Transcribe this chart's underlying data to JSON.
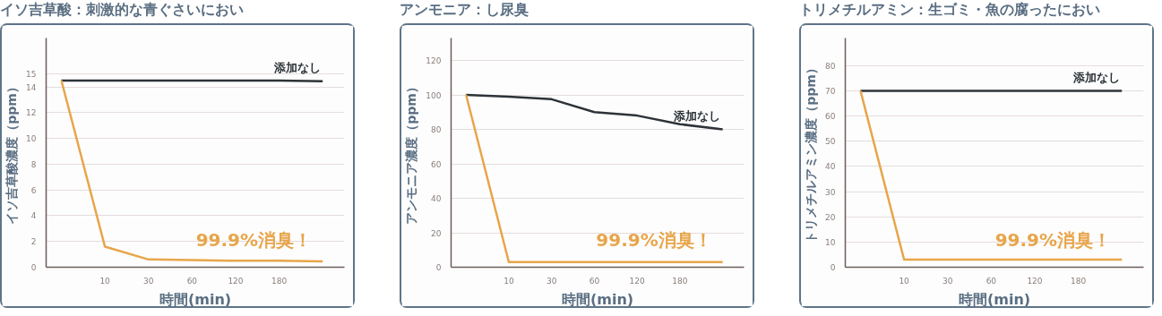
{
  "chart_data": [
    {
      "type": "line",
      "title": "イソ吉草酸：刺激的な青ぐさいにおい",
      "xlabel": "時間(min)",
      "ylabel": "イソ吉草酸濃度（ppm）",
      "categories": [
        null,
        "10",
        "30",
        "60",
        "120",
        "180",
        null
      ],
      "ylim": [
        0,
        17.8
      ],
      "yticks": [
        0,
        2,
        4,
        6,
        8,
        10,
        12,
        14,
        15
      ],
      "grid": "y",
      "line_style": "solid",
      "series": [
        {
          "name": "添加なし",
          "color": "#2d3338",
          "values": [
            14.5,
            14.5,
            14.5,
            14.5,
            14.5,
            14.5,
            14.45
          ]
        },
        {
          "color": "#e8a54a",
          "values": [
            14.5,
            1.6,
            0.6,
            0.55,
            0.5,
            0.5,
            0.45
          ]
        }
      ],
      "annotations": [
        "99.9%消臭！"
      ]
    },
    {
      "type": "line",
      "title": "アンモニア：し尿臭",
      "xlabel": "時間(min)",
      "ylabel": "アンモニア濃度（ppm）",
      "categories": [
        null,
        "10",
        "30",
        "60",
        "120",
        "180",
        null
      ],
      "ylim": [
        0,
        133
      ],
      "yticks": [
        0,
        20,
        40,
        60,
        80,
        100,
        120
      ],
      "grid": "y",
      "line_style": "solid",
      "series": [
        {
          "name": "添加なし",
          "color": "#2d3338",
          "values": [
            100,
            99,
            97.5,
            90,
            88,
            83,
            80
          ]
        },
        {
          "color": "#e8a54a",
          "values": [
            100,
            3,
            3,
            3,
            3,
            3,
            3
          ]
        }
      ],
      "annotations": [
        "99.9%消臭！"
      ]
    },
    {
      "type": "line",
      "title": "トリメチルアミン：生ゴミ・魚の腐ったにおい",
      "xlabel": "時間(min)",
      "ylabel": "トリメチルアミン濃度（ppm）",
      "categories": [
        null,
        "10",
        "30",
        "60",
        "120",
        "180",
        null
      ],
      "ylim": [
        0,
        91
      ],
      "yticks": [
        0,
        10,
        20,
        30,
        40,
        50,
        60,
        70,
        80
      ],
      "grid": "y",
      "line_style": "solid",
      "series": [
        {
          "name": "添加なし",
          "color": "#2d3338",
          "values": [
            70,
            70,
            70,
            70,
            70,
            70,
            70
          ]
        },
        {
          "color": "#e8a54a",
          "values": [
            70,
            3,
            3,
            3,
            3,
            3,
            3
          ]
        }
      ],
      "annotations": [
        "99.9%消臭！"
      ]
    }
  ]
}
